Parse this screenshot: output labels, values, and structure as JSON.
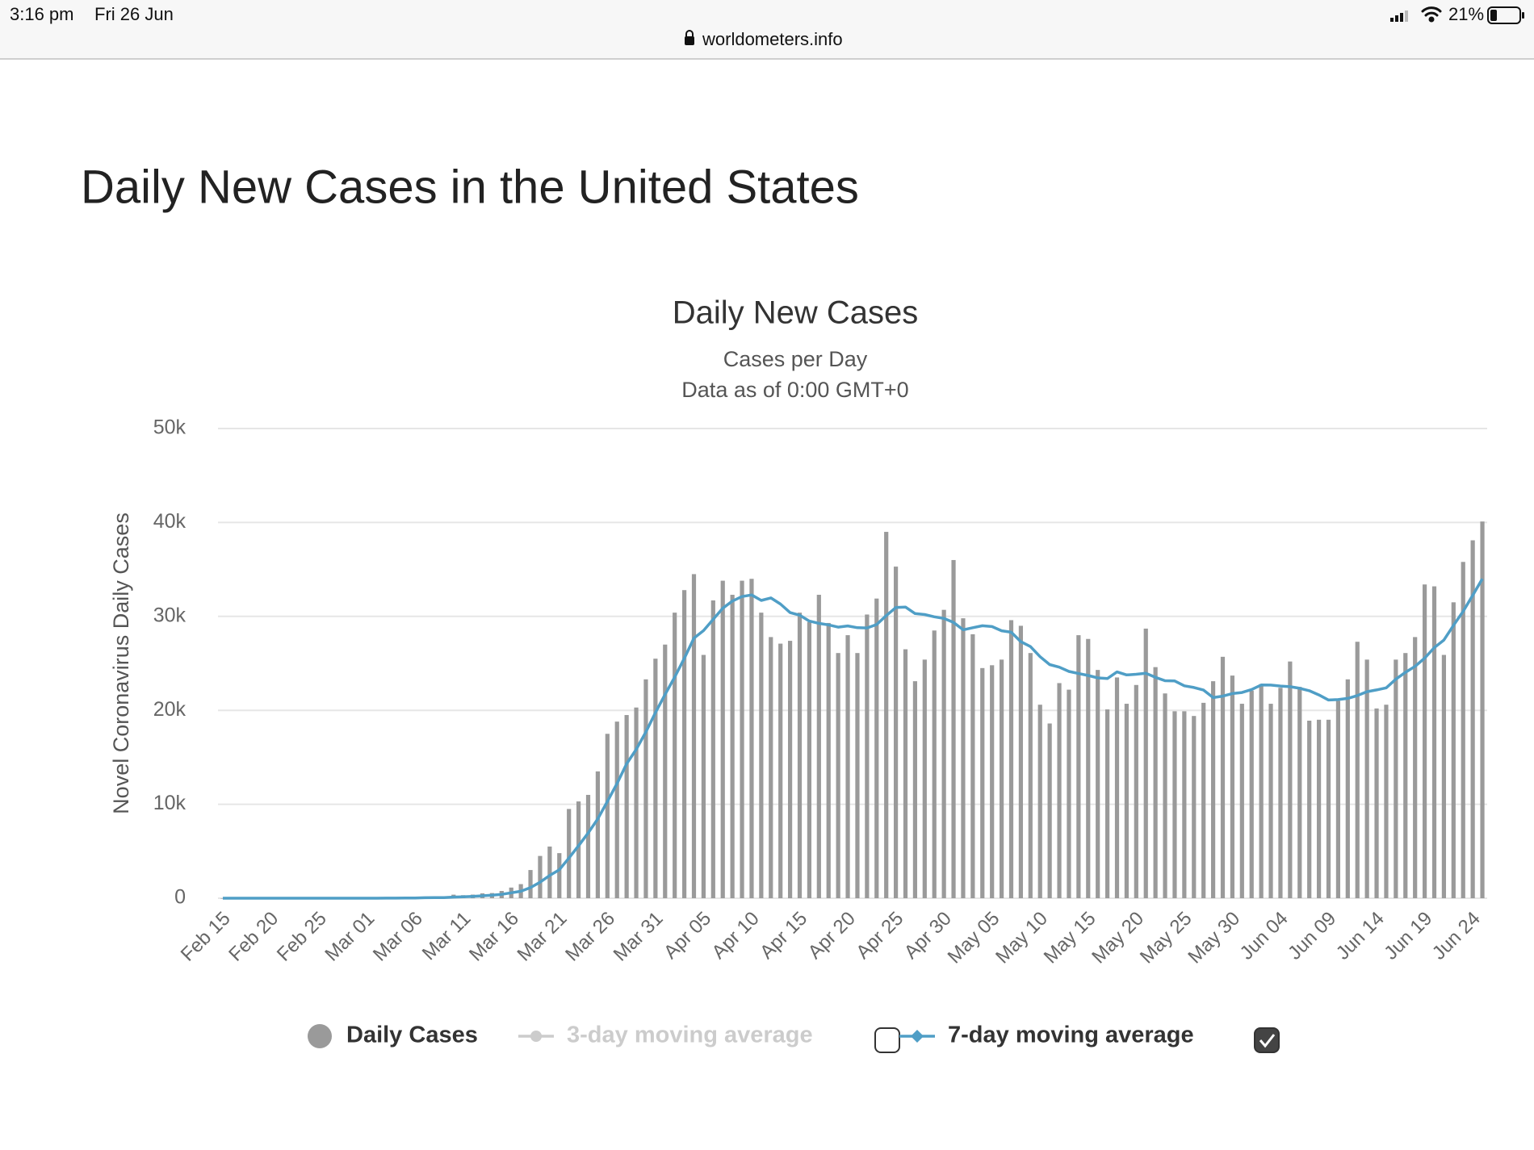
{
  "status_bar": {
    "time": "3:16 pm",
    "date": "Fri 26 Jun",
    "url": "worldometers.info",
    "battery": "21%"
  },
  "page_title": "Daily New Cases in the United States",
  "chart_data": {
    "type": "bar",
    "title": "Daily New Cases",
    "subtitle": [
      "Cases per Day",
      "Data as of 0:00 GMT+0"
    ],
    "y_label": "Novel Coronavirus Daily Cases",
    "ylim": [
      0,
      50000
    ],
    "yticks": [
      0,
      {
        "value": 10000,
        "label": "10k"
      },
      {
        "value": 20000,
        "label": "20k"
      },
      {
        "value": 30000,
        "label": "30k"
      },
      {
        "value": 40000,
        "label": "40k"
      },
      {
        "value": 50000,
        "label": "50k"
      }
    ],
    "grid": true,
    "categories": [
      "Feb 15",
      null,
      null,
      null,
      null,
      "Feb 20",
      null,
      null,
      null,
      null,
      "Feb 25",
      null,
      null,
      null,
      null,
      "Mar 01",
      null,
      null,
      null,
      null,
      "Mar 06",
      null,
      null,
      null,
      null,
      "Mar 11",
      null,
      null,
      null,
      null,
      "Mar 16",
      null,
      null,
      null,
      null,
      "Mar 21",
      null,
      null,
      null,
      null,
      "Mar 26",
      null,
      null,
      null,
      null,
      "Mar 31",
      null,
      null,
      null,
      null,
      "Apr 05",
      null,
      null,
      null,
      null,
      "Apr 10",
      null,
      null,
      null,
      null,
      "Apr 15",
      null,
      null,
      null,
      null,
      "Apr 20",
      null,
      null,
      null,
      null,
      "Apr 25",
      null,
      null,
      null,
      null,
      "Apr 30",
      null,
      null,
      null,
      null,
      "May 05",
      null,
      null,
      null,
      null,
      "May 10",
      null,
      null,
      null,
      null,
      "May 15",
      null,
      null,
      null,
      null,
      "May 20",
      null,
      null,
      null,
      null,
      "May 25",
      null,
      null,
      null,
      null,
      "May 30",
      null,
      null,
      null,
      null,
      "Jun 04",
      null,
      null,
      null,
      null,
      "Jun 09",
      null,
      null,
      null,
      null,
      "Jun 14",
      null,
      null,
      null,
      null,
      "Jun 19",
      null,
      null,
      null,
      null,
      "Jun 24",
      null
    ],
    "series": [
      {
        "name": "Daily Cases",
        "type": "bar",
        "color": "#9a9a9a",
        "values": [
          0,
          0,
          0,
          0,
          0,
          0,
          0,
          0,
          0,
          0,
          0,
          0,
          0,
          0,
          0,
          7,
          23,
          20,
          31,
          68,
          45,
          140,
          116,
          65,
          376,
          322,
          382,
          516,
          548,
          772,
          1133,
          1500,
          3000,
          4500,
          5500,
          4800,
          9500,
          10300,
          11000,
          13500,
          17500,
          18800,
          19500,
          20300,
          23300,
          25500,
          27000,
          30400,
          32800,
          34500,
          25900,
          31700,
          33800,
          32300,
          33800,
          34000,
          30400,
          27800,
          27100,
          27400,
          30400,
          29400,
          32300,
          29300,
          26100,
          28000,
          26100,
          30200,
          31900,
          39000,
          35300,
          26500,
          23100,
          25400,
          28500,
          30700,
          36000,
          29800,
          28100,
          24500,
          24800,
          25400,
          29600,
          29000,
          26100,
          20600,
          18600,
          22900,
          22200,
          28000,
          27600,
          24300,
          20100,
          23500,
          20700,
          22700,
          28700,
          24600,
          21800,
          19900,
          19900,
          19400,
          20800,
          23100,
          25700,
          23700,
          20700,
          22100,
          22800,
          20700,
          22400,
          25200,
          22500,
          18900,
          19000,
          19000,
          21000,
          23300,
          27300,
          25400,
          20200,
          20600,
          25400,
          26100,
          27800,
          33400,
          33200,
          25900,
          31500,
          35800,
          38100,
          40100
        ]
      },
      {
        "name": "3-day moving average",
        "type": "line",
        "color": "#cccccc",
        "visible": false
      },
      {
        "name": "7-day moving average",
        "type": "line",
        "color": "#4f9ec6",
        "values": [
          0,
          0,
          0,
          0,
          0,
          0,
          0,
          0,
          0,
          0,
          0,
          0,
          0,
          0,
          0,
          1,
          4,
          7,
          11,
          21,
          27,
          48,
          64,
          70,
          119,
          157,
          195,
          254,
          318,
          412,
          574,
          739,
          1122,
          1710,
          2422,
          3029,
          4276,
          5586,
          6943,
          8443,
          10300,
          12200,
          14300,
          15843,
          17700,
          19771,
          21700,
          23543,
          25543,
          27686,
          28486,
          29686,
          30871,
          31629,
          32114,
          32286,
          31700,
          31971,
          31314,
          30400,
          30129,
          29500,
          29257,
          29100,
          28857,
          28986,
          28800,
          28771,
          29129,
          30086,
          30943,
          31000,
          30300,
          30200,
          29957,
          29786,
          29357,
          28571,
          28800,
          29000,
          28914,
          28471,
          28314,
          27314,
          26786,
          25714,
          24871,
          24600,
          24143,
          23914,
          23714,
          23457,
          23386,
          24086,
          23771,
          23843,
          23943,
          23514,
          23157,
          23129,
          22614,
          22429,
          22157,
          21357,
          21514,
          21786,
          21900,
          22214,
          22700,
          22686,
          22586,
          22514,
          22343,
          22086,
          21643,
          21100,
          21143,
          21271,
          21571,
          21986,
          22171,
          22400,
          23314,
          24043,
          24686,
          25557,
          26671,
          27486,
          29043,
          30529,
          32243,
          34000
        ]
      }
    ]
  }
}
